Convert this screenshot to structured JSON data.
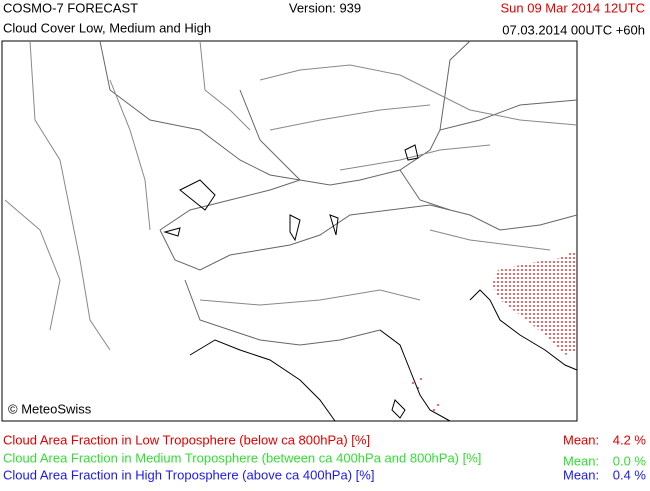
{
  "header": {
    "title": "COSMO-7 FORECAST",
    "subtitle": "Cloud Cover Low, Medium and High",
    "version": "Version: 939",
    "valid_time": "Sun 09 Mar 2014 12UTC",
    "run_time": "07.03.2014 00UTC +60h"
  },
  "map": {
    "copyright": "© MeteoSwiss"
  },
  "legend": [
    {
      "label": "Cloud Area Fraction in Low Troposphere (below ca 800hPa) [%]",
      "mean_label": "Mean:",
      "mean": "4.2 %"
    },
    {
      "label": "Cloud Area Fraction in Medium Troposphere (between ca 400hPa and 800hPa) [%]",
      "mean_label": "Mean:",
      "mean": "0.0 %"
    },
    {
      "label": "Cloud Area Fraction in High Troposphere (above ca 400hPa) [%]",
      "mean_label": "Mean:",
      "mean": "0.4 %"
    }
  ]
}
